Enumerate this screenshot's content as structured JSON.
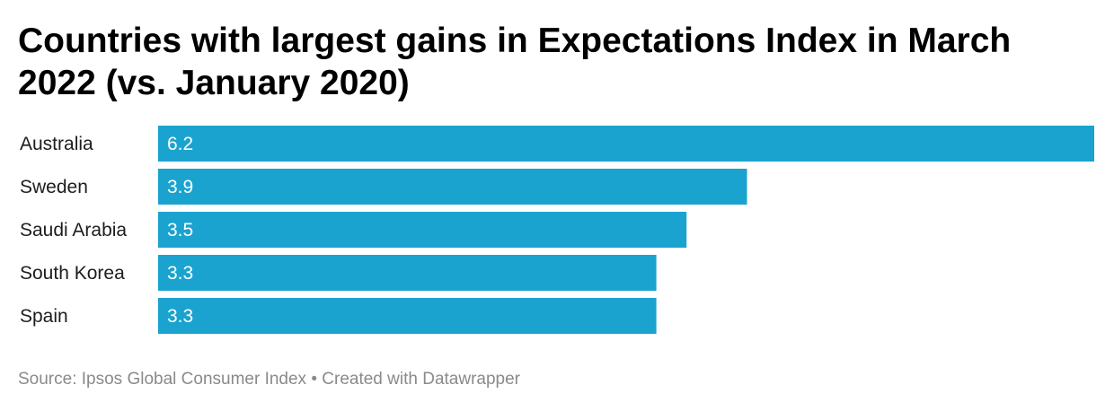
{
  "title": "Countries with largest gains in Expectations Index in March 2022 (vs. January 2020)",
  "footer": {
    "source": "Source: Ipsos Global Consumer Index",
    "separator": " • ",
    "credit": "Created with Datawrapper"
  },
  "colors": {
    "bar": "#1aa3cf",
    "value_text": "#ffffff",
    "title": "#000000",
    "footer": "#8a8a8a"
  },
  "chart_data": {
    "type": "bar",
    "orientation": "horizontal",
    "title": "Countries with largest gains in Expectations Index in March 2022 (vs. January 2020)",
    "xlabel": "",
    "ylabel": "",
    "categories": [
      "Australia",
      "Sweden",
      "Saudi Arabia",
      "South Korea",
      "Spain"
    ],
    "values": [
      6.2,
      3.9,
      3.5,
      3.3,
      3.3
    ],
    "value_labels": [
      "6.2",
      "3.9",
      "3.5",
      "3.3",
      "3.3"
    ],
    "xlim": [
      0,
      6.2
    ],
    "grid": false,
    "legend": "none",
    "data_labels": "inside-left"
  }
}
